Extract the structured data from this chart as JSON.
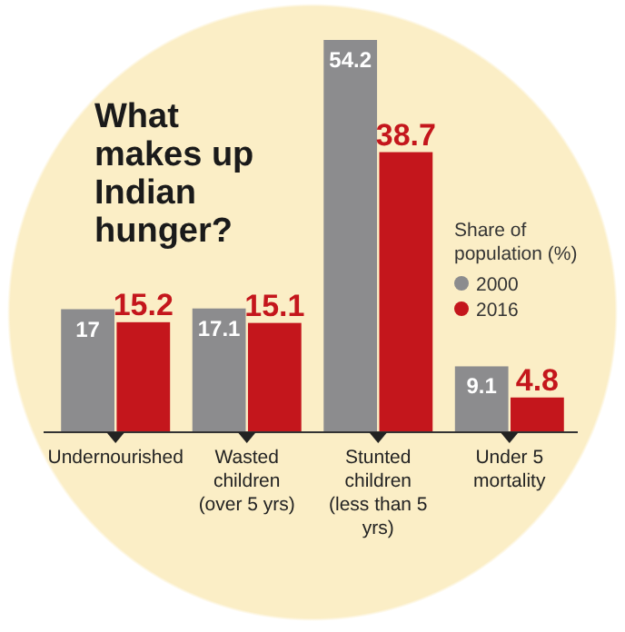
{
  "chart_data": {
    "type": "bar",
    "title": "What makes up Indian hunger?",
    "legend_title": "Share of population (%)",
    "categories": [
      "Undernourished",
      "Wasted children (over 5 yrs)",
      "Stunted children (less than 5 yrs)",
      "Under 5 mortality"
    ],
    "series": [
      {
        "name": "2000",
        "color": "#8c8c8e",
        "values": [
          17,
          17.1,
          54.2,
          9.1
        ]
      },
      {
        "name": "2016",
        "color": "#c4161c",
        "values": [
          15.2,
          15.1,
          38.7,
          4.8
        ]
      }
    ],
    "data_labels": true,
    "legend": "right"
  }
}
